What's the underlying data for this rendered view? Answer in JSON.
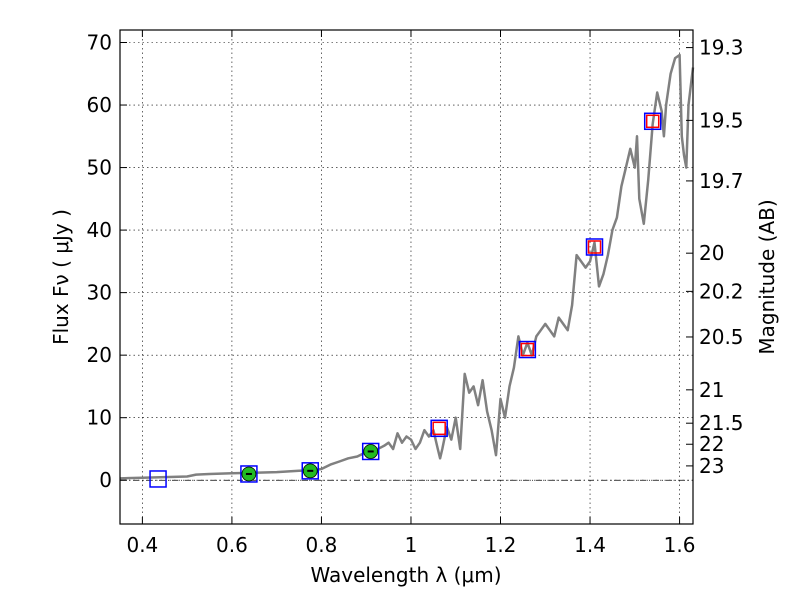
{
  "chart_data": {
    "type": "scatter",
    "xlabel": "Wavelength  λ (μm)",
    "ylabel": "Flux  Fν  ( μJy )",
    "ylabel_right": "Magnitude (AB)",
    "xlim": [
      0.35,
      1.63
    ],
    "ylim": [
      -7,
      72
    ],
    "grid": true,
    "x_ticks": [
      0.4,
      0.6,
      0.8,
      1.0,
      1.2,
      1.4,
      1.6
    ],
    "x_tick_labels": [
      "0.4",
      "0.6",
      "0.8",
      "1",
      "1.2",
      "1.4",
      "1.6"
    ],
    "y_ticks": [
      0,
      10,
      20,
      30,
      40,
      50,
      60,
      70
    ],
    "y_tick_labels": [
      "0",
      "10",
      "20",
      "30",
      "40",
      "50",
      "60",
      "70"
    ],
    "magnitude_ticks": [
      {
        "label": "19.3",
        "mag": 19.3
      },
      {
        "label": "19.5",
        "mag": 19.5
      },
      {
        "label": "19.7",
        "mag": 19.7
      },
      {
        "label": "20",
        "mag": 20.0
      },
      {
        "label": "20.2",
        "mag": 20.2
      },
      {
        "label": "20.5",
        "mag": 20.5
      },
      {
        "label": "21",
        "mag": 21.0
      },
      {
        "label": "21.5",
        "mag": 21.5
      },
      {
        "label": "22",
        "mag": 22.0
      },
      {
        "label": "23",
        "mag": 23.0
      }
    ],
    "series": [
      {
        "style": "line",
        "color": "#808080",
        "x": [
          0.35,
          0.4,
          0.45,
          0.5,
          0.52,
          0.55,
          0.6,
          0.65,
          0.7,
          0.75,
          0.78,
          0.8,
          0.82,
          0.84,
          0.86,
          0.88,
          0.9,
          0.92,
          0.94,
          0.95,
          0.96,
          0.97,
          0.98,
          0.99,
          1.0,
          1.01,
          1.02,
          1.03,
          1.04,
          1.05,
          1.06,
          1.065,
          1.07,
          1.08,
          1.09,
          1.1,
          1.11,
          1.12,
          1.13,
          1.14,
          1.15,
          1.16,
          1.17,
          1.18,
          1.19,
          1.2,
          1.21,
          1.22,
          1.23,
          1.24,
          1.25,
          1.26,
          1.27,
          1.28,
          1.29,
          1.3,
          1.31,
          1.32,
          1.33,
          1.34,
          1.35,
          1.36,
          1.37,
          1.38,
          1.39,
          1.4,
          1.41,
          1.42,
          1.43,
          1.44,
          1.45,
          1.46,
          1.47,
          1.48,
          1.49,
          1.5,
          1.505,
          1.51,
          1.52,
          1.53,
          1.54,
          1.55,
          1.56,
          1.565,
          1.57,
          1.58,
          1.59,
          1.6,
          1.605,
          1.61,
          1.615,
          1.62,
          1.63
        ],
        "y": [
          0.3,
          0.4,
          0.5,
          0.6,
          0.9,
          1.0,
          1.1,
          1.2,
          1.3,
          1.5,
          1.6,
          1.8,
          2.5,
          3.0,
          3.5,
          3.8,
          4.5,
          4.8,
          5.5,
          6.0,
          5.0,
          7.5,
          6.0,
          7.0,
          6.5,
          5.0,
          6.0,
          8.0,
          7.0,
          8.0,
          5.0,
          3.5,
          5.0,
          8.5,
          6.5,
          10.0,
          5.0,
          17.0,
          14.0,
          15.0,
          12.0,
          16.0,
          11.0,
          8.0,
          4.0,
          13.0,
          10.0,
          15.0,
          18.0,
          23.0,
          20.0,
          22.0,
          20.0,
          23.0,
          24.0,
          25.0,
          24.0,
          23.0,
          26.0,
          25.0,
          24.0,
          28.0,
          36.0,
          35.0,
          34.0,
          35.0,
          38.0,
          31.0,
          33.0,
          36.0,
          40.0,
          42.0,
          47.0,
          50.0,
          53.0,
          50.0,
          55.0,
          45.0,
          41.0,
          48.0,
          57.0,
          62.0,
          59.0,
          55.0,
          60.0,
          65.0,
          67.5,
          68.0,
          55.0,
          52.0,
          50.0,
          60.0,
          66.0
        ]
      },
      {
        "style": "markers",
        "marker": "square",
        "color": "#0000ff",
        "x": [
          0.435,
          0.638,
          0.775,
          0.91,
          1.063,
          1.26,
          1.41,
          1.54
        ],
        "y": [
          0.2,
          1.0,
          1.5,
          4.6,
          8.3,
          20.9,
          37.3,
          57.4
        ]
      },
      {
        "style": "markers",
        "marker": "square",
        "color": "#ff0000",
        "x": [
          1.063,
          1.26,
          1.41,
          1.54
        ],
        "y": [
          8.3,
          20.9,
          37.3,
          57.4
        ]
      },
      {
        "style": "markers",
        "marker": "circle",
        "color": "#22bb22",
        "x": [
          0.638,
          0.775,
          0.91
        ],
        "y": [
          1.0,
          1.5,
          4.6
        ]
      }
    ]
  }
}
